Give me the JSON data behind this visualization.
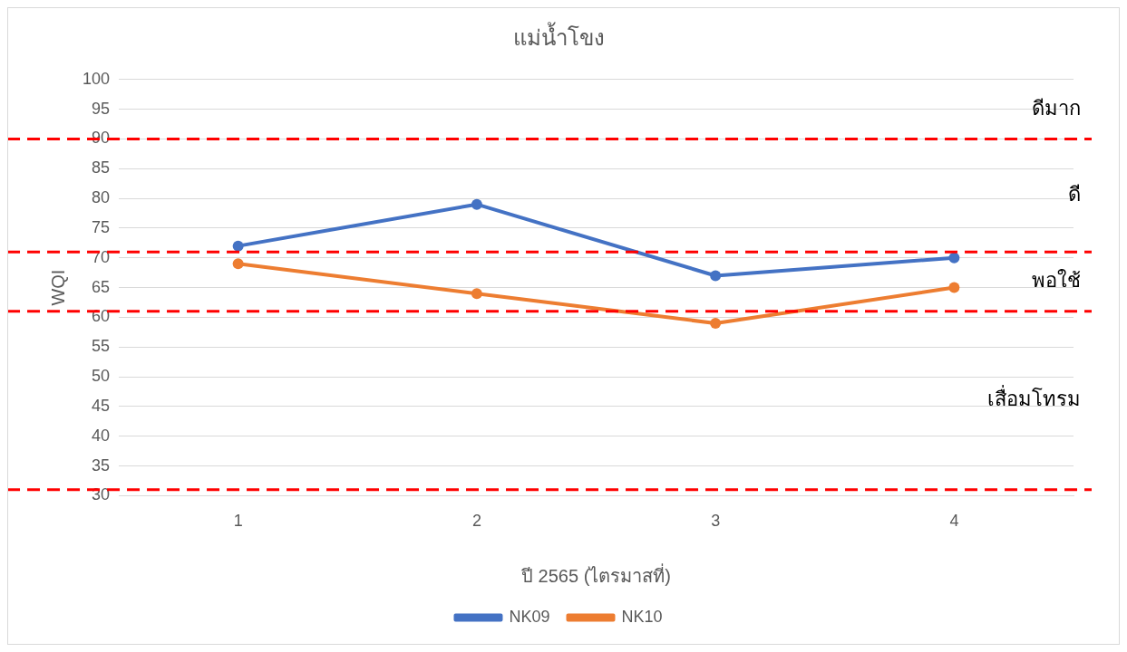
{
  "chart_data": {
    "type": "line",
    "title": "แม่น้ำโขง",
    "xlabel": "ปี 2565 (ไตรมาสที่)",
    "ylabel": "WQI",
    "categories": [
      "1",
      "2",
      "3",
      "4"
    ],
    "series": [
      {
        "name": "NK09",
        "color": "#4472c4",
        "values": [
          72,
          79,
          67,
          70
        ]
      },
      {
        "name": "NK10",
        "color": "#ed7d31",
        "values": [
          69,
          64,
          59,
          65
        ]
      }
    ],
    "ylim": [
      30,
      100
    ],
    "yticks": [
      30,
      35,
      40,
      45,
      50,
      55,
      60,
      65,
      70,
      75,
      80,
      85,
      90,
      95,
      100
    ],
    "grid": "y",
    "legend": "bottom",
    "marker": "circle",
    "line_style": "solid",
    "ref_lines": [
      {
        "axis": "y",
        "value": 90,
        "color": "#ff0000",
        "line_style": "dashed"
      },
      {
        "axis": "y",
        "value": 71,
        "color": "#ff0000",
        "line_style": "dashed"
      },
      {
        "axis": "y",
        "value": 61,
        "color": "#ff0000",
        "line_style": "dashed"
      },
      {
        "axis": "y",
        "value": 31,
        "color": "#ff0000",
        "line_style": "dashed"
      }
    ],
    "annotations": [
      "ดีมาก",
      "ดี",
      "พอใช้",
      "เสื่อมโทรม"
    ]
  }
}
